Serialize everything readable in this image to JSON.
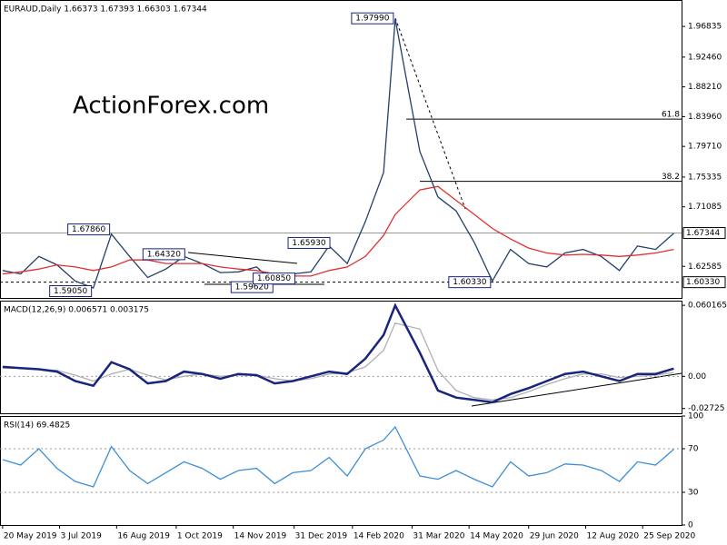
{
  "chart_data": [
    {
      "type": "line",
      "title": "EURAUD,Daily 1.66373 1.67393 1.66303 1.67344",
      "watermark": "ActionForex.com",
      "x": [
        "2019-05-20",
        "2019-06-03",
        "2019-06-17",
        "2019-07-01",
        "2019-07-15",
        "2019-07-29",
        "2019-08-12",
        "2019-08-26",
        "2019-09-09",
        "2019-09-23",
        "2019-10-07",
        "2019-10-21",
        "2019-11-04",
        "2019-11-18",
        "2019-12-02",
        "2019-12-16",
        "2019-12-30",
        "2020-01-13",
        "2020-01-27",
        "2020-02-10",
        "2020-02-24",
        "2020-03-09",
        "2020-03-18",
        "2020-04-06",
        "2020-04-20",
        "2020-05-04",
        "2020-05-18",
        "2020-06-01",
        "2020-06-15",
        "2020-06-29",
        "2020-07-13",
        "2020-07-27",
        "2020-08-10",
        "2020-08-24",
        "2020-09-07",
        "2020-09-21",
        "2020-10-05",
        "2020-10-19"
      ],
      "xlim": [
        "2019-05-18",
        "2020-10-25"
      ],
      "ylim": [
        1.5808,
        2.0061
      ],
      "yticks": [
        1.96835,
        {
          "value": 1.9246,
          "label": "1.92460"
        },
        {
          "value": 1.8821,
          "label": "1.88210"
        },
        {
          "value": 1.8396,
          "label": "1.83960"
        },
        {
          "value": 1.7971,
          "label": "1.79710"
        },
        1.75335,
        1.71085,
        1.62585
      ],
      "series": [
        {
          "color": "#23406b",
          "values": [
            1.62,
            1.615,
            1.64,
            1.628,
            1.605,
            1.595,
            1.672,
            1.64,
            1.61,
            1.622,
            1.64,
            1.63,
            1.617,
            1.618,
            1.625,
            1.602,
            1.615,
            1.618,
            1.655,
            1.63,
            1.69,
            1.76,
            1.979,
            1.79,
            1.725,
            1.705,
            1.66,
            1.605,
            1.65,
            1.63,
            1.625,
            1.645,
            1.65,
            1.64,
            1.62,
            1.655,
            1.65,
            1.673
          ]
        },
        {
          "color": "#e03030",
          "values": [
            1.615,
            1.618,
            1.622,
            1.628,
            1.625,
            1.62,
            1.625,
            1.635,
            1.635,
            1.63,
            1.63,
            1.63,
            1.625,
            1.622,
            1.62,
            1.615,
            1.612,
            1.612,
            1.62,
            1.625,
            1.64,
            1.67,
            1.7,
            1.735,
            1.74,
            1.72,
            1.7,
            1.68,
            1.665,
            1.652,
            1.645,
            1.642,
            1.643,
            1.642,
            1.64,
            1.642,
            1.645,
            1.65
          ]
        }
      ],
      "labels": [
        {
          "label": "1.97990",
          "value": 1.9799,
          "x": "2020-03-18"
        },
        {
          "label": "1.67860",
          "value": 1.6786,
          "x": "2019-08-12"
        },
        {
          "label": "1.64320",
          "value": 1.6432,
          "x": "2019-10-09"
        },
        {
          "label": "1.59050",
          "value": 1.5905,
          "x": "2019-07-29"
        },
        {
          "label": "1.65930",
          "value": 1.6593,
          "x": "2020-01-29"
        },
        {
          "label": "1.59620",
          "value": 1.5962,
          "x": "2019-12-16"
        },
        {
          "label": "1.60850",
          "value": 1.6085,
          "x": "2020-01-02"
        },
        {
          "label": "1.60330",
          "value": 1.6033,
          "x": "2020-06-01"
        }
      ],
      "fib_levels": [
        {
          "label": "61.8",
          "value": 1.836
        },
        {
          "label": "38.2",
          "value": 1.7472
        }
      ],
      "price_markers": [
        {
          "label": "1.67344",
          "value": 1.67344,
          "style": "solid"
        },
        {
          "label": "1.60330",
          "value": 1.6033,
          "style": "dashed"
        }
      ]
    },
    {
      "type": "line",
      "title": "MACD(12,26,9) 0.006571 0.003175",
      "x": [
        "2019-05-20",
        "2019-06-03",
        "2019-06-17",
        "2019-07-01",
        "2019-07-15",
        "2019-07-29",
        "2019-08-12",
        "2019-08-26",
        "2019-09-09",
        "2019-09-23",
        "2019-10-07",
        "2019-10-21",
        "2019-11-04",
        "2019-11-18",
        "2019-12-02",
        "2019-12-16",
        "2019-12-30",
        "2020-01-13",
        "2020-01-27",
        "2020-02-10",
        "2020-02-24",
        "2020-03-09",
        "2020-03-18",
        "2020-04-06",
        "2020-04-20",
        "2020-05-04",
        "2020-05-18",
        "2020-06-01",
        "2020-06-15",
        "2020-06-29",
        "2020-07-13",
        "2020-07-27",
        "2020-08-10",
        "2020-08-24",
        "2020-09-07",
        "2020-09-21",
        "2020-10-05",
        "2020-10-19"
      ],
      "xlim": [
        "2019-05-18",
        "2020-10-25"
      ],
      "ylim": [
        -0.0313,
        0.0641
      ],
      "yticks": [
        0.060165,
        {
          "value": 0,
          "label": "0.00"
        },
        -0.02725
      ],
      "levels": [
        0
      ],
      "series": [
        {
          "color": "#b0b0b0",
          "values": [
            0.007,
            0.007,
            0.006,
            0.005,
            0.001,
            -0.004,
            0.002,
            0.006,
            0.001,
            -0.003,
            0.0,
            0.002,
            0.0,
            0.001,
            0.001,
            -0.002,
            -0.004,
            -0.002,
            0.002,
            0.003,
            0.008,
            0.022,
            0.045,
            0.04,
            0.005,
            -0.012,
            -0.018,
            -0.02,
            -0.018,
            -0.013,
            -0.007,
            -0.002,
            0.002,
            0.002,
            -0.001,
            0.0,
            0.001,
            0.003175
          ]
        },
        {
          "color": "#1a237e",
          "values": [
            0.008,
            0.007,
            0.006,
            0.004,
            -0.004,
            -0.008,
            0.012,
            0.006,
            -0.006,
            -0.004,
            0.004,
            0.002,
            -0.002,
            0.002,
            0.001,
            -0.006,
            -0.004,
            0.0,
            0.004,
            0.002,
            0.015,
            0.035,
            0.06,
            0.02,
            -0.012,
            -0.018,
            -0.02,
            -0.022,
            -0.015,
            -0.01,
            -0.004,
            0.002,
            0.004,
            0.0,
            -0.004,
            0.002,
            0.002,
            0.006571
          ]
        }
      ]
    },
    {
      "type": "line",
      "title": "RSI(14) 69.4825",
      "x": [
        "2019-05-20",
        "2019-06-03",
        "2019-06-17",
        "2019-07-01",
        "2019-07-15",
        "2019-07-29",
        "2019-08-12",
        "2019-08-26",
        "2019-09-09",
        "2019-09-23",
        "2019-10-07",
        "2019-10-21",
        "2019-11-04",
        "2019-11-18",
        "2019-12-02",
        "2019-12-16",
        "2019-12-30",
        "2020-01-13",
        "2020-01-27",
        "2020-02-10",
        "2020-02-24",
        "2020-03-09",
        "2020-03-18",
        "2020-04-06",
        "2020-04-20",
        "2020-05-04",
        "2020-05-18",
        "2020-06-01",
        "2020-06-15",
        "2020-06-29",
        "2020-07-13",
        "2020-07-27",
        "2020-08-10",
        "2020-08-24",
        "2020-09-07",
        "2020-09-21",
        "2020-10-05",
        "2020-10-19"
      ],
      "xlim": [
        "2019-05-18",
        "2020-10-25"
      ],
      "ylim": [
        0,
        100
      ],
      "yticks": [
        100,
        70,
        30,
        0
      ],
      "levels": [
        70,
        30
      ],
      "xticks": [
        {
          "value": "2019-05-20",
          "label": "20 May 2019"
        },
        {
          "value": "2019-07-03",
          "label": "3 Jul 2019"
        },
        {
          "value": "2019-08-16",
          "label": "16 Aug 2019"
        },
        {
          "value": "2019-10-01",
          "label": "1 Oct 2019"
        },
        {
          "value": "2019-11-14",
          "label": "14 Nov 2019"
        },
        {
          "value": "2019-12-31",
          "label": "31 Dec 2019"
        },
        {
          "value": "2020-02-14",
          "label": "14 Feb 2020"
        },
        {
          "value": "2020-03-31",
          "label": "31 Mar 2020"
        },
        {
          "value": "2020-05-14",
          "label": "14 May 2020"
        },
        {
          "value": "2020-06-29",
          "label": "29 Jun 2020"
        },
        {
          "value": "2020-08-12",
          "label": "12 Aug 2020"
        },
        {
          "value": "2020-09-25",
          "label": "25 Sep 2020"
        }
      ],
      "series": [
        {
          "color": "#3c8fd6",
          "values": [
            60,
            55,
            70,
            52,
            40,
            35,
            72,
            50,
            38,
            48,
            58,
            52,
            42,
            50,
            52,
            38,
            48,
            50,
            62,
            45,
            70,
            78,
            90,
            45,
            42,
            50,
            42,
            35,
            58,
            45,
            48,
            56,
            55,
            50,
            40,
            58,
            55,
            69.4825
          ]
        }
      ]
    }
  ]
}
